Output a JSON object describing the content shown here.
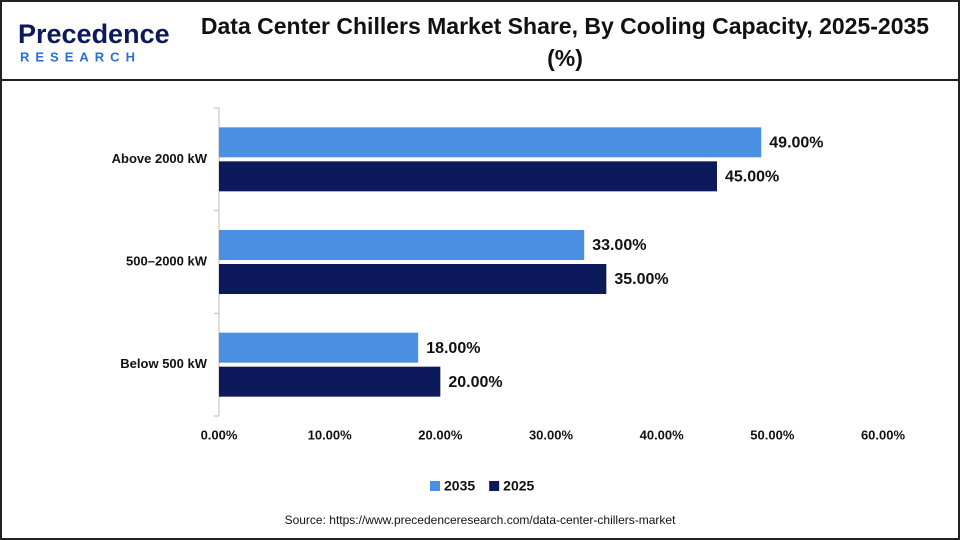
{
  "logo": {
    "name": "Precedence",
    "tagline": "RESEARCH"
  },
  "chart_data": {
    "type": "hbar",
    "title": "Data Center Chillers Market Share, By Cooling Capacity, 2025-2035 (%)",
    "categories": [
      "Above 2000 kW",
      "500–2000 kW",
      "Below 500 kW"
    ],
    "series": [
      {
        "name": "2035",
        "color": "#4a90e2",
        "values": [
          49,
          33,
          18
        ],
        "value_labels": [
          "49.00%",
          "33.00%",
          "18.00%"
        ]
      },
      {
        "name": "2025",
        "color": "#0c1a5c",
        "values": [
          45,
          35,
          20
        ],
        "value_labels": [
          "45.00%",
          "35.00%",
          "20.00%"
        ]
      }
    ],
    "xlim": [
      0,
      60
    ],
    "xticks": [
      {
        "value": 0,
        "label": "0.00%"
      },
      {
        "value": 10,
        "label": "10.00%"
      },
      {
        "value": 20,
        "label": "20.00%"
      },
      {
        "value": 30,
        "label": "30.00%"
      },
      {
        "value": 40,
        "label": "40.00%"
      },
      {
        "value": 50,
        "label": "50.00%"
      },
      {
        "value": 60,
        "label": "60.00%"
      }
    ],
    "grid": false,
    "legend": "bottom",
    "source": "Source: https://www.precedenceresearch.com/data-center-chillers-market"
  }
}
